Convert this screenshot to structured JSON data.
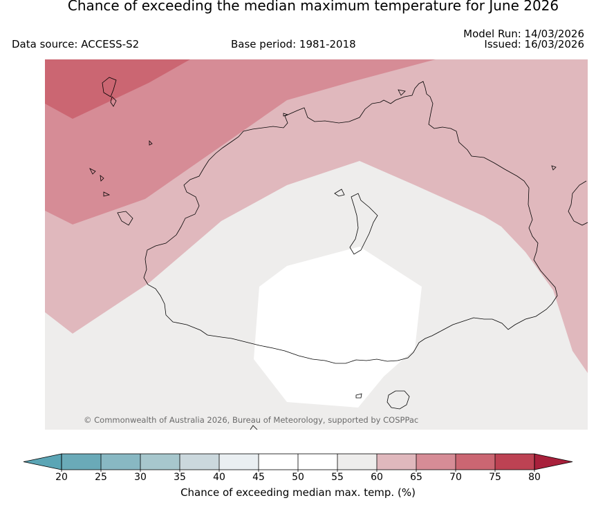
{
  "title": "Chance of exceeding the median maximum temperature for June 2026",
  "data_source": "Data source: ACCESS-S2",
  "base_period": "Base period: 1981-2018",
  "model_run": "Model Run: 14/03/2026",
  "issued": "Issued: 16/03/2026",
  "copyright": "© Commonwealth of Australia 2026, Bureau of Meteorology, supported by COSPPac",
  "colorbar": {
    "label": "Chance of exceeding median max. temp. (%)",
    "ticks": [
      "20",
      "25",
      "30",
      "35",
      "40",
      "45",
      "50",
      "55",
      "60",
      "65",
      "70",
      "75",
      "80"
    ],
    "colors": [
      "#5ba5b5",
      "#6aaab8",
      "#88b8c3",
      "#a7c7cd",
      "#cbd8dd",
      "#eaeff2",
      "#ffffff",
      "#ffffff",
      "#eeedec",
      "#e0b8bd",
      "#d68c96",
      "#cb6672",
      "#bd4253",
      "#a8203b"
    ]
  },
  "regions": [
    {
      "name": "probability-60-65",
      "color": "#e0b8bd"
    },
    {
      "name": "probability-65-70",
      "color": "#d68c96"
    },
    {
      "name": "probability-70-75",
      "color": "#cb6672"
    },
    {
      "name": "probability-50-55",
      "color": "#ffffff"
    },
    {
      "name": "probability-55-60",
      "color": "#eeedec"
    }
  ]
}
